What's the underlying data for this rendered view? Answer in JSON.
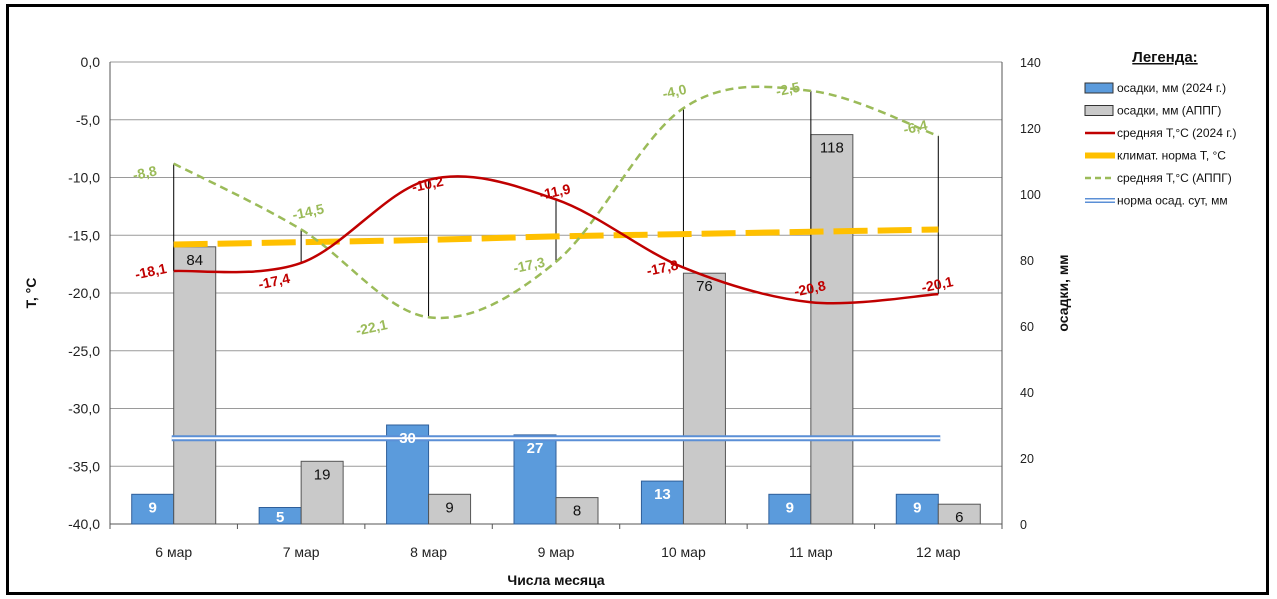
{
  "chart_data": {
    "type": "bar",
    "title": "",
    "xlabel": "Числа месяца",
    "ylabel_left": "Т, °С",
    "ylabel_right": "осадки, мм",
    "categories": [
      "6 мар",
      "7 мар",
      "8 мар",
      "9 мар",
      "10 мар",
      "11 мар",
      "12 мар"
    ],
    "ylim_left": [
      -40,
      0
    ],
    "ylim_right": [
      0,
      140
    ],
    "yticks_left": [
      "0,0",
      "-5,0",
      "-10,0",
      "-15,0",
      "-20,0",
      "-25,0",
      "-30,0",
      "-35,0",
      "-40,0"
    ],
    "yticks_right": [
      "140",
      "120",
      "100",
      "80",
      "60",
      "40",
      "20",
      "0"
    ],
    "grid": true,
    "legend_title": "Легенда:",
    "legend_position": "right",
    "series": [
      {
        "name": "осадки, мм (2024 г.)",
        "kind": "bar",
        "axis": "right",
        "color": "#5b9bdc",
        "values": [
          9,
          5,
          30,
          27,
          13,
          9,
          9
        ],
        "labels": [
          "9",
          "5",
          "30",
          "27",
          "13",
          "9",
          "9"
        ]
      },
      {
        "name": "осадки, мм (АППГ)",
        "kind": "bar",
        "axis": "right",
        "color": "#c9c9c9",
        "values": [
          84,
          19,
          9,
          8,
          76,
          118,
          6
        ],
        "labels": [
          "84",
          "19",
          "9",
          "8",
          "76",
          "118",
          "6"
        ]
      },
      {
        "name": "средняя Т,°С (2024 г.)",
        "kind": "line",
        "axis": "left",
        "color": "#c00000",
        "values": [
          -18.1,
          -17.4,
          -10.2,
          -11.9,
          -17.8,
          -20.8,
          -20.1
        ],
        "labels": [
          "-18,1",
          "-17,4",
          "-10,2",
          "-11,9",
          "-17,8",
          "-20,8",
          "-20,1"
        ]
      },
      {
        "name": "климат. норма Т, °С",
        "kind": "line",
        "axis": "left",
        "color": "#ffc000",
        "values": [
          -15.8,
          -15.6,
          -15.4,
          -15.1,
          -14.9,
          -14.7,
          -14.5
        ]
      },
      {
        "name": "средняя Т,°С (АППГ)",
        "kind": "line",
        "axis": "left",
        "color": "#9bbb59",
        "values": [
          -8.8,
          -14.5,
          -22.1,
          -17.3,
          -4.0,
          -2.5,
          -6.4
        ],
        "labels": [
          "-8,8",
          "-14,5",
          "-22,1",
          "-17,3",
          "-4,0",
          "-2,5",
          "-6,4"
        ]
      },
      {
        "name": "норма осад. сут, мм",
        "kind": "line",
        "axis": "right",
        "color": "#5b8fd6",
        "values": [
          26,
          26,
          26,
          26,
          26,
          26,
          26
        ]
      }
    ]
  }
}
